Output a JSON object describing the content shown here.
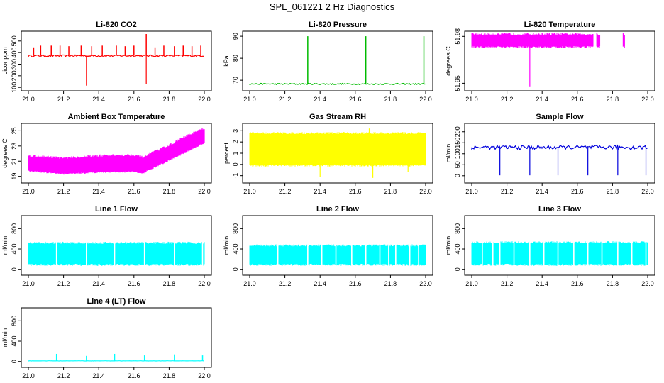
{
  "page_title": "SPL_061221  2 Hz Diagnostics",
  "chart_data": [
    {
      "type": "line",
      "title": "Li-820 CO2",
      "ylabel": "Licor ppm",
      "color": "#ff0000",
      "xlim": [
        21.0,
        22.0
      ],
      "xticks": [
        21.0,
        21.2,
        21.4,
        21.6,
        21.8,
        22.0
      ],
      "ylim": [
        95,
        560
      ],
      "yticks": [
        100,
        200,
        300,
        400,
        500
      ],
      "series": [
        {
          "name": "CO2",
          "base": [
            365,
            380
          ],
          "spikes_up": [
            [
              21.03,
              445
            ],
            [
              21.07,
              460
            ],
            [
              21.13,
              460
            ],
            [
              21.18,
              460
            ],
            [
              21.23,
              455
            ],
            [
              21.3,
              460
            ],
            [
              21.36,
              455
            ],
            [
              21.42,
              460
            ],
            [
              21.5,
              460
            ],
            [
              21.55,
              455
            ],
            [
              21.6,
              460
            ],
            [
              21.67,
              560
            ],
            [
              21.72,
              445
            ],
            [
              21.77,
              460
            ],
            [
              21.83,
              455
            ],
            [
              21.88,
              460
            ],
            [
              21.93,
              455
            ],
            [
              21.98,
              460
            ]
          ],
          "spikes_down": [
            [
              21.33,
              115
            ],
            [
              21.67,
              130
            ]
          ]
        }
      ]
    },
    {
      "type": "line",
      "title": "Li-820 Pressure",
      "ylabel": "kPa",
      "color": "#00bb00",
      "xlim": [
        21.0,
        22.0
      ],
      "xticks": [
        21.0,
        21.2,
        21.4,
        21.6,
        21.8,
        22.0
      ],
      "ylim": [
        66.5,
        91
      ],
      "yticks": [
        70,
        80,
        90
      ],
      "series": [
        {
          "name": "pressure",
          "base": [
            68,
            68.6
          ],
          "spikes_up": [
            [
              21.33,
              90
            ],
            [
              21.66,
              90
            ],
            [
              21.99,
              90
            ]
          ],
          "spikes_down": []
        }
      ]
    },
    {
      "type": "line",
      "title": "Li-820 Temperature",
      "ylabel": "degrees C",
      "color": "#ff00ff",
      "xlim": [
        21.0,
        22.0
      ],
      "xticks": [
        21.0,
        21.2,
        21.4,
        21.6,
        21.8,
        22.0
      ],
      "ylim": [
        51.947,
        51.9815
      ],
      "yticks": [
        51.95,
        51.98
      ],
      "series": [
        {
          "name": "temperature",
          "band": [
            [
              21.0,
              21.69,
              51.9738,
              51.9808
            ],
            [
              21.71,
              21.73,
              51.9738,
              51.9808
            ],
            [
              21.86,
              21.87,
              51.9738,
              51.9808
            ]
          ],
          "line_high": 51.9808,
          "spikes_down": [
            [
              21.33,
              51.948
            ]
          ]
        }
      ]
    },
    {
      "type": "line",
      "title": "Ambient Box Temperature",
      "ylabel": "degrees C",
      "color": "#ff00ff",
      "xlim": [
        21.0,
        22.0
      ],
      "xticks": [
        21.0,
        21.2,
        21.4,
        21.6,
        21.8,
        22.0
      ],
      "ylim": [
        18.5,
        25.6
      ],
      "yticks": [
        19,
        21,
        23,
        25
      ],
      "series": [
        {
          "name": "ambient",
          "band_trend": [
            [
              21.0,
              19.8,
              21.6
            ],
            [
              21.2,
              19.4,
              21.3
            ],
            [
              21.4,
              19.6,
              21.6
            ],
            [
              21.6,
              19.7,
              21.7
            ],
            [
              21.65,
              19.5,
              21.4
            ],
            [
              21.8,
              21.2,
              23.0
            ],
            [
              21.9,
              22.3,
              24.2
            ],
            [
              22.0,
              23.5,
              25.2
            ]
          ]
        }
      ]
    },
    {
      "type": "line",
      "title": "Gas Stream RH",
      "ylabel": "percent",
      "color": "#ffff00",
      "xlim": [
        21.0,
        22.0
      ],
      "xticks": [
        21.0,
        21.2,
        21.4,
        21.6,
        21.8,
        22.0
      ],
      "ylim": [
        -1.4,
        3.4
      ],
      "yticks": [
        -1,
        0,
        1,
        2,
        3
      ],
      "series": [
        {
          "name": "rh",
          "band": [
            [
              21.0,
              22.0,
              0.0,
              2.7
            ]
          ],
          "spikes_down": [
            [
              21.4,
              -1.1
            ],
            [
              21.7,
              -1.2
            ],
            [
              21.9,
              -0.7
            ]
          ],
          "spikes_up": [
            [
              21.68,
              3.2
            ]
          ]
        }
      ]
    },
    {
      "type": "line",
      "title": "Sample Flow",
      "ylabel": "ml/min",
      "color": "#0000dd",
      "xlim": [
        21.0,
        22.0
      ],
      "xticks": [
        21.0,
        21.2,
        21.4,
        21.6,
        21.8,
        22.0
      ],
      "ylim": [
        -20,
        225
      ],
      "yticks": [
        0,
        50,
        100,
        150,
        200
      ],
      "series": [
        {
          "name": "sample_flow",
          "base": [
            120,
            138
          ],
          "spikes_down": [
            [
              21.16,
              2
            ],
            [
              21.33,
              2
            ],
            [
              21.49,
              2
            ],
            [
              21.66,
              2
            ],
            [
              21.83,
              2
            ],
            [
              21.99,
              2
            ]
          ],
          "spikes_up": []
        }
      ]
    },
    {
      "type": "line",
      "title": "Line 1 Flow",
      "ylabel": "ml/min",
      "color": "#00ffff",
      "xlim": [
        21.0,
        22.0
      ],
      "xticks": [
        21.0,
        21.2,
        21.4,
        21.6,
        21.8,
        22.0
      ],
      "ylim": [
        -60,
        1000
      ],
      "yticks": [
        0,
        400,
        800
      ],
      "series": [
        {
          "name": "line1",
          "band": [
            [
              21.0,
              22.0,
              110,
              500
            ]
          ],
          "gaps": [
            21.16,
            21.33,
            21.49,
            21.66,
            21.83,
            21.99
          ]
        }
      ]
    },
    {
      "type": "line",
      "title": "Line 2 Flow",
      "ylabel": "ml/min",
      "color": "#00ffff",
      "xlim": [
        21.0,
        22.0
      ],
      "xticks": [
        21.0,
        21.2,
        21.4,
        21.6,
        21.8,
        22.0
      ],
      "ylim": [
        -60,
        1000
      ],
      "yticks": [
        0,
        400,
        800
      ],
      "series": [
        {
          "name": "line2",
          "band": [
            [
              21.0,
              22.0,
              110,
              450
            ]
          ],
          "gaps": [
            21.16,
            21.33,
            21.41,
            21.49,
            21.58,
            21.66,
            21.74,
            21.79,
            21.83,
            21.91,
            21.96
          ]
        }
      ]
    },
    {
      "type": "line",
      "title": "Line 3 Flow",
      "ylabel": "ml/min",
      "color": "#00ffff",
      "xlim": [
        21.0,
        22.0
      ],
      "xticks": [
        21.0,
        21.2,
        21.4,
        21.6,
        21.8,
        22.0
      ],
      "ylim": [
        -60,
        1000
      ],
      "yticks": [
        0,
        400,
        800
      ],
      "series": [
        {
          "name": "line3",
          "band": [
            [
              21.0,
              22.0,
              110,
              510
            ]
          ],
          "gaps": [
            21.06,
            21.12,
            21.16,
            21.24,
            21.33,
            21.41,
            21.49,
            21.58,
            21.66,
            21.74,
            21.83,
            21.91,
            21.99
          ]
        }
      ]
    },
    {
      "type": "line",
      "title": "Line 4 (LT) Flow",
      "ylabel": "ml/min",
      "color": "#00ffff",
      "xlim": [
        21.0,
        22.0
      ],
      "xticks": [
        21.0,
        21.2,
        21.4,
        21.6,
        21.8,
        22.0
      ],
      "ylim": [
        -60,
        1000
      ],
      "yticks": [
        0,
        400,
        800
      ],
      "series": [
        {
          "name": "line4",
          "base": [
            10,
            14
          ],
          "spikes_up": [
            [
              21.16,
              150
            ],
            [
              21.33,
              110
            ],
            [
              21.49,
              150
            ],
            [
              21.66,
              120
            ],
            [
              21.83,
              140
            ],
            [
              21.99,
              120
            ]
          ],
          "spikes_down": []
        }
      ]
    }
  ]
}
